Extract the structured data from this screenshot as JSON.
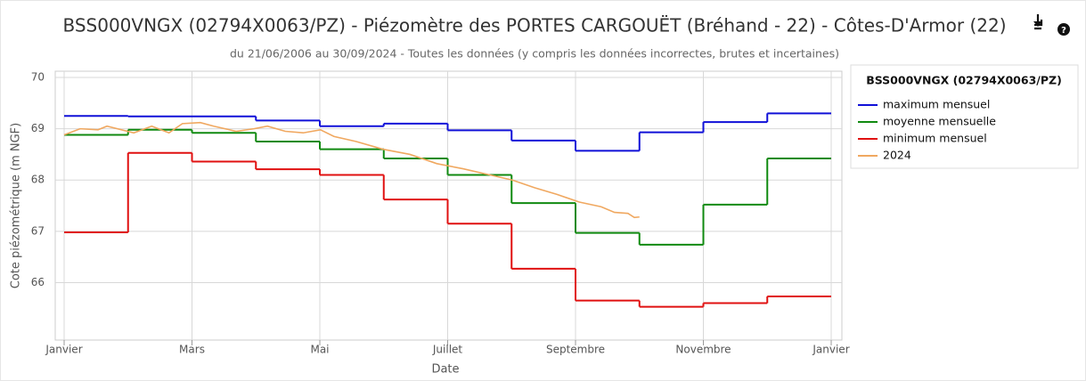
{
  "chart_data": {
    "type": "line",
    "title": "BSS000VNGX (02794X0063/PZ) - Piézomètre des PORTES CARGOUËT (Bréhand - 22) - Côtes-D'Armor (22)",
    "subtitle": "du 21/06/2006 au 30/09/2024 - Toutes les données (y compris les données incorrectes, brutes et incertaines)",
    "x_label": "Date",
    "y_label": "Cote piézométrique (m NGF)",
    "legend_title": "BSS000VNGX (02794X0063/PZ)",
    "legend": "right",
    "grid": true,
    "xlim": [
      0,
      12
    ],
    "xticks": [
      {
        "value": 0,
        "label": "Janvier"
      },
      {
        "value": 2,
        "label": "Mars"
      },
      {
        "value": 4,
        "label": "Mai"
      },
      {
        "value": 6,
        "label": "Juillet"
      },
      {
        "value": 8,
        "label": "Septembre"
      },
      {
        "value": 10,
        "label": "Novembre"
      },
      {
        "value": 12,
        "label": "Janvier"
      }
    ],
    "ylim": [
      64.95,
      70
    ],
    "yticks": [
      66,
      67,
      68,
      69,
      70
    ],
    "series": [
      {
        "name": "maximum mensuel",
        "color": "#1010d8",
        "step": true,
        "values": [
          69.25,
          69.24,
          69.24,
          69.16,
          69.05,
          69.1,
          68.97,
          68.77,
          68.57,
          68.93,
          69.13,
          69.3
        ]
      },
      {
        "name": "moyenne mensuelle",
        "color": "#108a10",
        "step": true,
        "values": [
          68.88,
          68.98,
          68.92,
          68.75,
          68.6,
          68.42,
          68.1,
          67.55,
          66.97,
          66.74,
          67.52,
          68.42
        ]
      },
      {
        "name": "minimum mensuel",
        "color": "#e01010",
        "step": true,
        "values": [
          66.98,
          68.53,
          68.36,
          68.21,
          68.1,
          67.62,
          67.15,
          66.27,
          65.65,
          65.53,
          65.6,
          65.73
        ]
      },
      {
        "name": "2024",
        "color": "#f0a860",
        "step": false,
        "x": [
          0,
          0.25,
          0.53,
          0.67,
          1.09,
          1.37,
          1.64,
          1.85,
          2.13,
          2.34,
          2.69,
          2.97,
          3.18,
          3.46,
          3.74,
          4.01,
          4.22,
          4.57,
          4.99,
          5.41,
          5.83,
          6.24,
          6.66,
          7.01,
          7.36,
          7.71,
          8.06,
          8.4,
          8.61,
          8.82,
          8.92,
          9.0
        ],
        "values": [
          68.88,
          69.0,
          68.98,
          69.05,
          68.92,
          69.05,
          68.92,
          69.1,
          69.12,
          69.05,
          68.95,
          69.0,
          69.05,
          68.95,
          68.92,
          68.98,
          68.85,
          68.75,
          68.6,
          68.5,
          68.32,
          68.22,
          68.1,
          68.0,
          67.85,
          67.72,
          67.57,
          67.48,
          67.37,
          67.35,
          67.27,
          67.28
        ]
      }
    ]
  }
}
